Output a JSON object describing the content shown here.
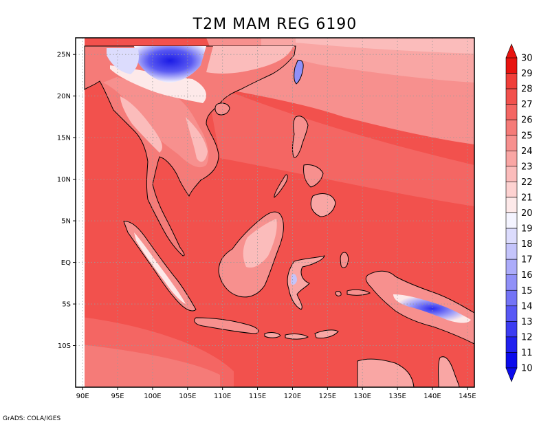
{
  "title": "T2M MAM REG 6190",
  "footer": "GrADS: COLA/IGES",
  "map": {
    "lon_range": [
      89,
      146
    ],
    "lat_range": [
      -15,
      27
    ],
    "lon_ticks": [
      {
        "value": 90,
        "label": "90E"
      },
      {
        "value": 95,
        "label": "95E"
      },
      {
        "value": 100,
        "label": "100E"
      },
      {
        "value": 105,
        "label": "105E"
      },
      {
        "value": 110,
        "label": "110E"
      },
      {
        "value": 115,
        "label": "115E"
      },
      {
        "value": 120,
        "label": "120E"
      },
      {
        "value": 125,
        "label": "125E"
      },
      {
        "value": 130,
        "label": "130E"
      },
      {
        "value": 135,
        "label": "135E"
      },
      {
        "value": 140,
        "label": "140E"
      },
      {
        "value": 145,
        "label": "145E"
      }
    ],
    "lat_ticks": [
      {
        "value": 25,
        "label": "25N"
      },
      {
        "value": 20,
        "label": "20N"
      },
      {
        "value": 15,
        "label": "15N"
      },
      {
        "value": 10,
        "label": "10N"
      },
      {
        "value": 5,
        "label": "5N"
      },
      {
        "value": 0,
        "label": "EQ"
      },
      {
        "value": -5,
        "label": "5S"
      },
      {
        "value": -10,
        "label": "10S"
      }
    ],
    "grid": "dotted"
  },
  "colorbar": {
    "levels": [
      {
        "value": "30",
        "color": "#e8130f"
      },
      {
        "value": "29",
        "color": "#ee2b26"
      },
      {
        "value": "28",
        "color": "#f03e39"
      },
      {
        "value": "27",
        "color": "#f2514d"
      },
      {
        "value": "26",
        "color": "#f46663"
      },
      {
        "value": "25",
        "color": "#f57b78"
      },
      {
        "value": "24",
        "color": "#f7908e"
      },
      {
        "value": "23",
        "color": "#f9a6a4"
      },
      {
        "value": "22",
        "color": "#fbbcbb"
      },
      {
        "value": "21",
        "color": "#fdd2d1"
      },
      {
        "value": "20",
        "color": "#fde9e9"
      },
      {
        "value": "19",
        "color": "#f4f4ff"
      },
      {
        "value": "18",
        "color": "#dcdcfd"
      },
      {
        "value": "17",
        "color": "#c4c4fb"
      },
      {
        "value": "16",
        "color": "#acacfa"
      },
      {
        "value": "15",
        "color": "#9090f8"
      },
      {
        "value": "14",
        "color": "#7474f6"
      },
      {
        "value": "13",
        "color": "#5858f5"
      },
      {
        "value": "12",
        "color": "#3c3cf2"
      },
      {
        "value": "11",
        "color": "#2020ef"
      },
      {
        "value": "10",
        "color": "#0b0bec"
      }
    ]
  },
  "colors": {
    "sea_warm": "#f2514d",
    "sea_mid": "#f46663",
    "sea_cool": "#f7908e",
    "land_warm": "#f57b78",
    "land_cool": "#f9a6a4",
    "highland": "#fde9e9",
    "tibet_cold": "#3c3cf2",
    "coast": "#000000"
  }
}
